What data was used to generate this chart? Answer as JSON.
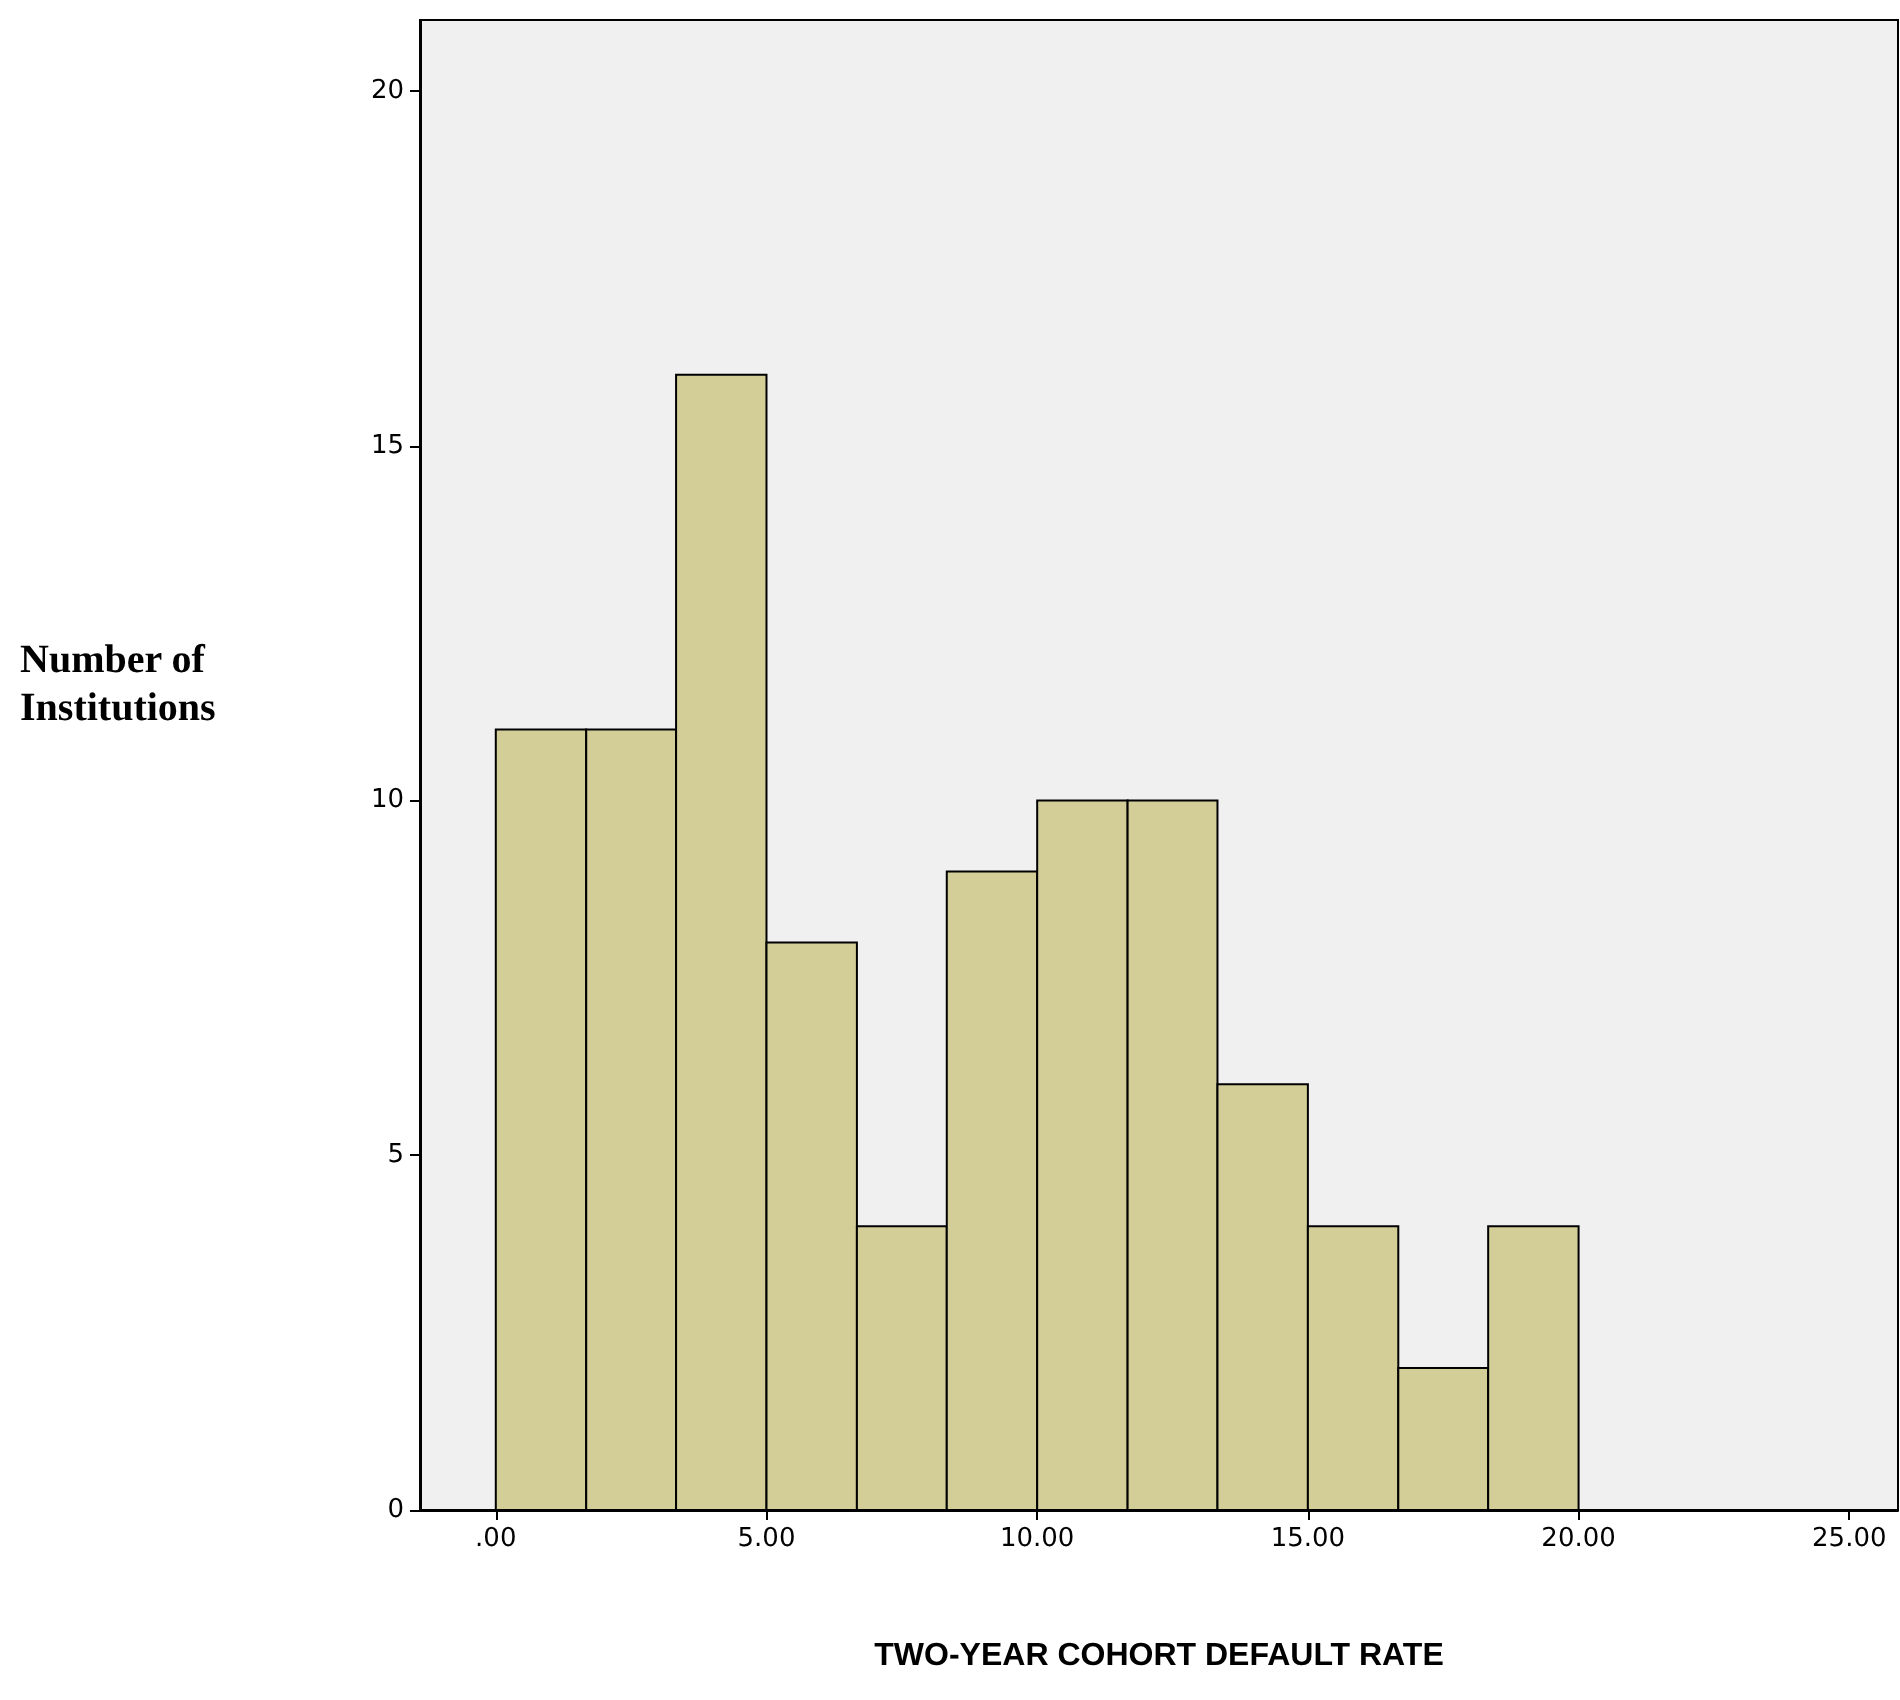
{
  "chart_data": {
    "type": "histogram",
    "xlabel": "TWO-YEAR COHORT DEFAULT RATE",
    "ylabel": "Number of Institutions",
    "bins": [
      0,
      1.67,
      3.33,
      5,
      6.67,
      8.33,
      10,
      11.67,
      13.33,
      15,
      16.67,
      18.33,
      20
    ],
    "values": [
      11,
      11,
      16,
      8,
      4,
      9,
      10,
      10,
      6,
      4,
      2,
      4
    ],
    "color": "#d3ce97",
    "xlim": [
      -1.4,
      25.9
    ],
    "ylim": [
      0,
      21
    ],
    "xticks": [
      {
        "value": 0,
        "label": ".00"
      },
      {
        "value": 5,
        "label": "5.00"
      },
      {
        "value": 10,
        "label": "10.00"
      },
      {
        "value": 15,
        "label": "15.00"
      },
      {
        "value": 20,
        "label": "20.00"
      },
      {
        "value": 25,
        "label": "25.00"
      }
    ],
    "yticks": [
      0,
      5,
      10,
      15,
      20
    ],
    "grid": false
  }
}
